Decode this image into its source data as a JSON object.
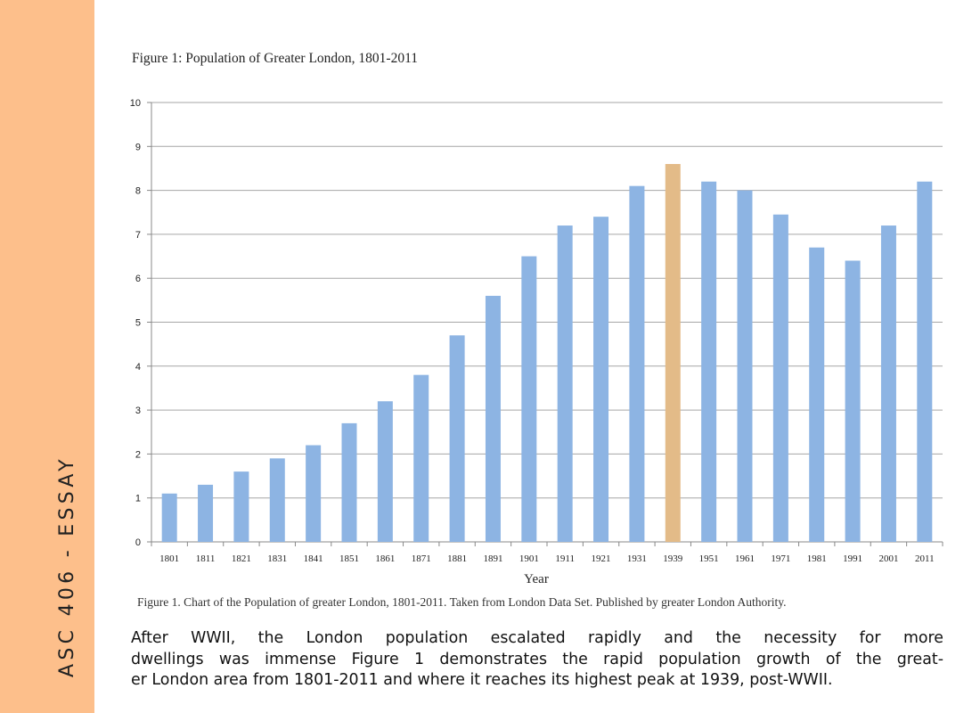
{
  "sidebar": {
    "label": "ASC 406 - ESSAY",
    "color": "#fdbf8b"
  },
  "figure_title": "Figure 1: Population of Greater London, 1801-2011",
  "chart_data": {
    "type": "bar",
    "title": "Figure 1: Population of Greater London, 1801-2011",
    "xlabel": "Year",
    "ylabel": "",
    "ylim": [
      0,
      10
    ],
    "yticks": [
      0,
      1,
      2,
      3,
      4,
      5,
      6,
      7,
      8,
      9,
      10
    ],
    "grid": true,
    "categories": [
      "1801",
      "1811",
      "1821",
      "1831",
      "1841",
      "1851",
      "1861",
      "1871",
      "1881",
      "1891",
      "1901",
      "1911",
      "1921",
      "1931",
      "1939",
      "1951",
      "1961",
      "1971",
      "1981",
      "1991",
      "2001",
      "2011"
    ],
    "values": [
      1.1,
      1.3,
      1.6,
      1.9,
      2.2,
      2.7,
      3.2,
      3.8,
      4.7,
      5.6,
      6.5,
      7.2,
      7.4,
      8.1,
      8.6,
      8.2,
      8.0,
      7.45,
      6.7,
      6.4,
      7.2,
      8.2
    ],
    "highlight": "1939",
    "colors": {
      "bar": "#8db4e3",
      "highlight": "#e3bb88",
      "grid": "#a6a6a6"
    }
  },
  "caption": "Figure 1. Chart of the Population of greater London, 1801-2011. Taken from London Data Set. Published by greater London Authority.",
  "paragraph": {
    "lines": [
      "After WWII, the London population escalated rapidly and the necessity for more",
      "dwellings was immense Figure 1 demonstrates the rapid population growth of the great-",
      "er London area from 1801-2011 and where it reaches its highest peak at 1939, post-WWII."
    ]
  }
}
